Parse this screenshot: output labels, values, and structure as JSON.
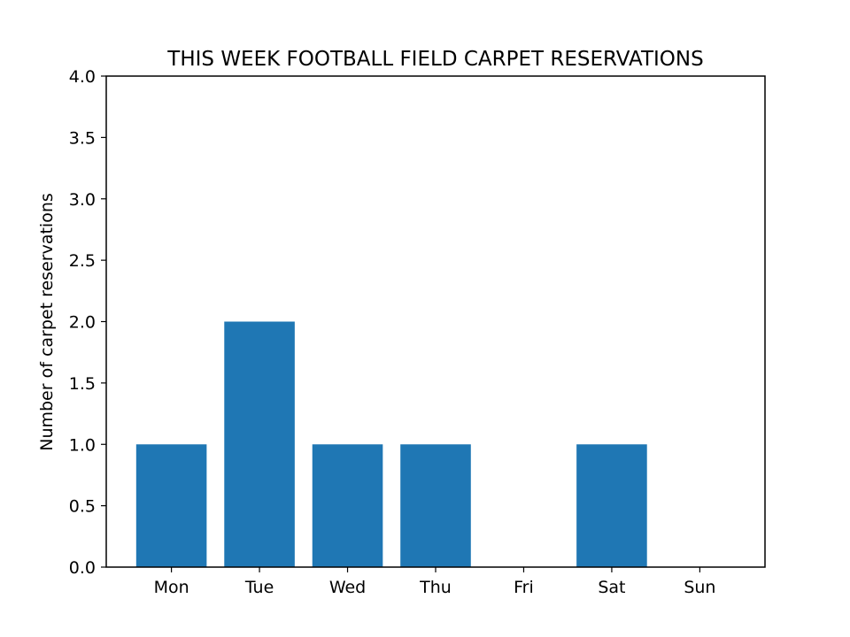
{
  "chart_data": {
    "type": "bar",
    "title": "THIS WEEK FOOTBALL FIELD CARPET RESERVATIONS",
    "xlabel": "",
    "ylabel": "Number of carpet reservations",
    "categories": [
      "Mon",
      "Tue",
      "Wed",
      "Thu",
      "Fri",
      "Sat",
      "Sun"
    ],
    "values": [
      1,
      2,
      1,
      1,
      0,
      1,
      0
    ],
    "ylim": [
      0,
      4.0
    ],
    "yticks": [
      "0.0",
      "0.5",
      "1.0",
      "1.5",
      "2.0",
      "2.5",
      "3.0",
      "3.5",
      "4.0"
    ],
    "grid": false,
    "bar_color": "#1f77b4"
  }
}
